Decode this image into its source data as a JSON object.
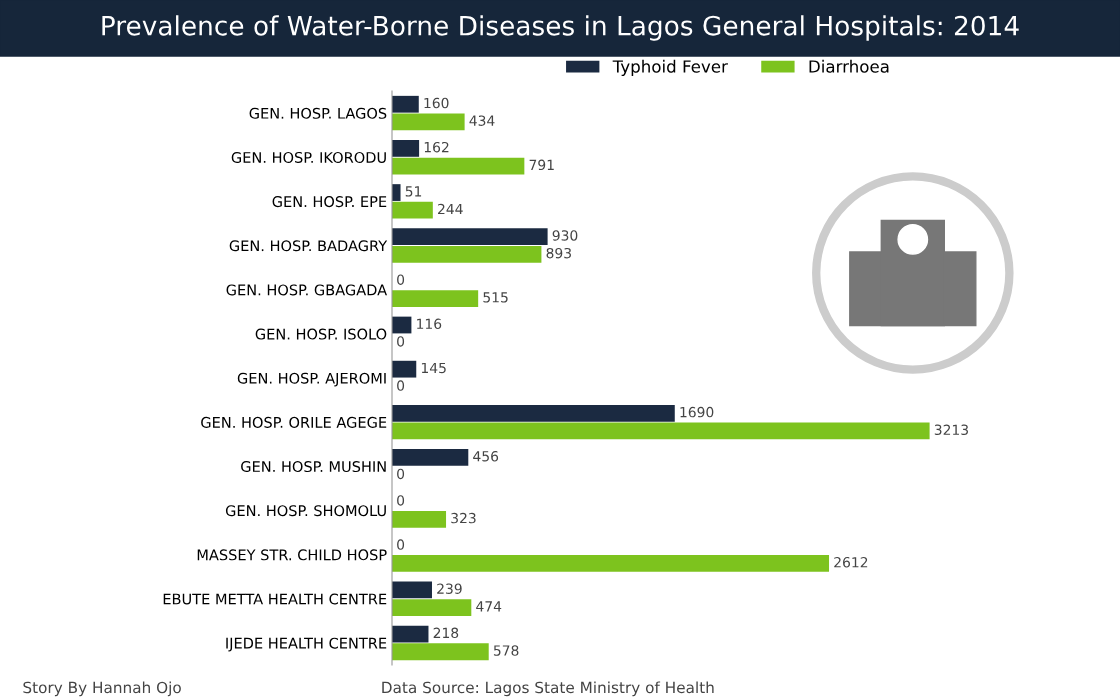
{
  "chart_data": {
    "type": "bar",
    "orientation": "horizontal",
    "title": "Prevalence of Water-Borne Diseases in Lagos General Hospitals: 2014",
    "categories": [
      "GEN. HOSP. LAGOS",
      "GEN. HOSP. IKORODU",
      "GEN. HOSP. EPE",
      "GEN. HOSP. BADAGRY",
      "GEN. HOSP. GBAGADA",
      "GEN. HOSP. ISOLO",
      "GEN. HOSP. AJEROMI",
      "GEN. HOSP. ORILE AGEGE",
      "GEN. HOSP. MUSHIN",
      "GEN. HOSP. SHOMOLU",
      "MASSEY STR. CHILD HOSP",
      "EBUTE METTA HEALTH CENTRE",
      "IJEDE HEALTH CENTRE"
    ],
    "series": [
      {
        "name": "Typhoid Fever",
        "color": "#1b2a41",
        "values": [
          160,
          162,
          51,
          930,
          0,
          116,
          145,
          1690,
          456,
          0,
          0,
          239,
          218
        ]
      },
      {
        "name": "Diarrhoea",
        "color": "#7dc31e",
        "values": [
          434,
          791,
          244,
          893,
          515,
          0,
          0,
          3213,
          0,
          323,
          2612,
          474,
          578
        ]
      }
    ],
    "data_labels": true,
    "legend": "top",
    "grid": false,
    "annotations": [
      "Story By Hannah Ojo",
      "Data Source: Lagos State Ministry of Health"
    ]
  }
}
